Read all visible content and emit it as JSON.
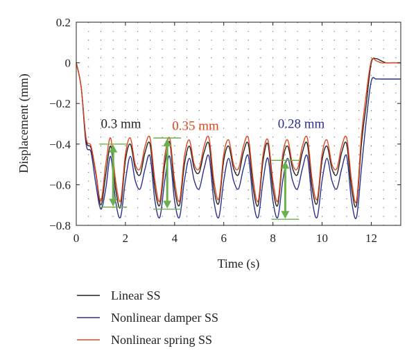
{
  "chart_data": {
    "type": "line",
    "xlabel": "Time (s)",
    "ylabel": "Displacement (mm)",
    "xlim": [
      0,
      13.2
    ],
    "ylim": [
      -0.8,
      0.2
    ],
    "xticks": [
      0,
      2,
      4,
      6,
      8,
      10,
      12
    ],
    "xtick_labels": [
      "0",
      "2",
      "4",
      "6",
      "8",
      "10",
      "12"
    ],
    "yticks": [
      0.2,
      0,
      -0.2,
      -0.4,
      -0.6,
      -0.8
    ],
    "ytick_labels": [
      "0.2",
      "0",
      "−0.2",
      "−0.4",
      "−0.6",
      "−0.8"
    ],
    "grid": "dotted",
    "legend": "below",
    "series": [
      {
        "name": "Linear SS",
        "color": "#222222",
        "x": [
          0,
          0.2,
          0.4,
          0.6,
          0.8,
          1.0,
          1.2,
          1.4,
          1.6,
          1.8,
          2.0,
          2.2,
          2.4,
          2.6,
          2.8,
          3.0,
          3.2,
          3.4,
          3.6,
          3.8,
          4.0,
          4.2,
          4.4,
          4.6,
          4.8,
          5.0,
          5.2,
          5.4,
          5.6,
          5.8,
          6.0,
          6.2,
          6.4,
          6.6,
          6.8,
          7.0,
          7.2,
          7.4,
          7.6,
          7.8,
          8.0,
          8.2,
          8.4,
          8.6,
          8.8,
          9.0,
          9.2,
          9.4,
          9.6,
          9.8,
          10.0,
          10.2,
          10.4,
          10.6,
          10.8,
          11.0,
          11.2,
          11.4,
          11.6,
          11.8,
          12.0,
          12.2,
          12.4,
          12.6,
          12.8,
          13.2
        ],
        "y": [
          0,
          -0.12,
          -0.38,
          -0.42,
          -0.55,
          -0.7,
          -0.55,
          -0.41,
          -0.62,
          -0.71,
          -0.48,
          -0.4,
          -0.52,
          -0.55,
          -0.44,
          -0.4,
          -0.62,
          -0.7,
          -0.5,
          -0.39,
          -0.62,
          -0.7,
          -0.5,
          -0.41,
          -0.52,
          -0.54,
          -0.44,
          -0.4,
          -0.62,
          -0.69,
          -0.48,
          -0.41,
          -0.52,
          -0.55,
          -0.44,
          -0.4,
          -0.62,
          -0.7,
          -0.48,
          -0.4,
          -0.62,
          -0.7,
          -0.48,
          -0.41,
          -0.52,
          -0.55,
          -0.44,
          -0.4,
          -0.62,
          -0.69,
          -0.48,
          -0.41,
          -0.52,
          -0.55,
          -0.44,
          -0.4,
          -0.62,
          -0.7,
          -0.4,
          -0.2,
          0.0,
          0.02,
          0.01,
          0.0,
          0.0,
          0.0
        ]
      },
      {
        "name": "Nonlinear damper SS",
        "color": "#2b2f8f",
        "x": [
          0,
          0.2,
          0.4,
          0.6,
          0.8,
          1.0,
          1.2,
          1.4,
          1.6,
          1.8,
          2.0,
          2.2,
          2.4,
          2.6,
          2.8,
          3.0,
          3.2,
          3.4,
          3.6,
          3.8,
          4.0,
          4.2,
          4.4,
          4.6,
          4.8,
          5.0,
          5.2,
          5.4,
          5.6,
          5.8,
          6.0,
          6.2,
          6.4,
          6.6,
          6.8,
          7.0,
          7.2,
          7.4,
          7.6,
          7.8,
          8.0,
          8.2,
          8.4,
          8.6,
          8.8,
          9.0,
          9.2,
          9.4,
          9.6,
          9.8,
          10.0,
          10.2,
          10.4,
          10.6,
          10.8,
          11.0,
          11.2,
          11.4,
          11.6,
          11.8,
          12.0,
          12.2,
          12.4,
          12.6,
          12.8,
          13.2
        ],
        "y": [
          0,
          -0.12,
          -0.4,
          -0.44,
          -0.6,
          -0.72,
          -0.62,
          -0.46,
          -0.68,
          -0.76,
          -0.58,
          -0.46,
          -0.58,
          -0.62,
          -0.52,
          -0.46,
          -0.68,
          -0.76,
          -0.58,
          -0.46,
          -0.68,
          -0.76,
          -0.58,
          -0.47,
          -0.58,
          -0.62,
          -0.52,
          -0.46,
          -0.68,
          -0.76,
          -0.58,
          -0.47,
          -0.58,
          -0.62,
          -0.52,
          -0.46,
          -0.68,
          -0.76,
          -0.58,
          -0.47,
          -0.68,
          -0.76,
          -0.58,
          -0.47,
          -0.58,
          -0.62,
          -0.52,
          -0.46,
          -0.68,
          -0.76,
          -0.58,
          -0.47,
          -0.58,
          -0.62,
          -0.52,
          -0.46,
          -0.68,
          -0.76,
          -0.52,
          -0.28,
          -0.09,
          -0.08,
          -0.08,
          -0.08,
          -0.08,
          -0.08
        ]
      },
      {
        "name": "Nonlinear spring SS",
        "color": "#e0461e",
        "x": [
          0,
          0.2,
          0.4,
          0.6,
          0.8,
          1.0,
          1.2,
          1.4,
          1.6,
          1.8,
          2.0,
          2.2,
          2.4,
          2.6,
          2.8,
          3.0,
          3.2,
          3.4,
          3.6,
          3.8,
          4.0,
          4.2,
          4.4,
          4.6,
          4.8,
          5.0,
          5.2,
          5.4,
          5.6,
          5.8,
          6.0,
          6.2,
          6.4,
          6.6,
          6.8,
          7.0,
          7.2,
          7.4,
          7.6,
          7.8,
          8.0,
          8.2,
          8.4,
          8.6,
          8.8,
          9.0,
          9.2,
          9.4,
          9.6,
          9.8,
          10.0,
          10.2,
          10.4,
          10.6,
          10.8,
          11.0,
          11.2,
          11.4,
          11.6,
          11.8,
          12.0,
          12.2,
          12.4,
          12.6,
          12.8,
          13.2
        ],
        "y": [
          0,
          -0.12,
          -0.37,
          -0.41,
          -0.54,
          -0.68,
          -0.5,
          -0.37,
          -0.58,
          -0.68,
          -0.45,
          -0.37,
          -0.5,
          -0.52,
          -0.41,
          -0.37,
          -0.58,
          -0.68,
          -0.46,
          -0.37,
          -0.58,
          -0.68,
          -0.46,
          -0.38,
          -0.5,
          -0.52,
          -0.41,
          -0.37,
          -0.58,
          -0.67,
          -0.45,
          -0.38,
          -0.5,
          -0.52,
          -0.41,
          -0.37,
          -0.58,
          -0.68,
          -0.45,
          -0.38,
          -0.58,
          -0.68,
          -0.45,
          -0.38,
          -0.5,
          -0.52,
          -0.41,
          -0.37,
          -0.58,
          -0.67,
          -0.45,
          -0.38,
          -0.5,
          -0.52,
          -0.41,
          -0.37,
          -0.58,
          -0.68,
          -0.36,
          -0.15,
          0.01,
          0.01,
          0.0,
          0.0,
          0.0,
          0.0
        ]
      }
    ],
    "annotations": [
      {
        "text": "0.3 mm",
        "color": "#222222",
        "x": 1.0,
        "y": -0.3,
        "range": [
          1.5,
          -0.4,
          -0.71
        ]
      },
      {
        "text": "0.35 mm",
        "color": "#e0461e",
        "x": 3.9,
        "y": -0.31,
        "range": [
          3.7,
          -0.37,
          -0.72
        ]
      },
      {
        "text": "0.28 mm",
        "color": "#2b2f8f",
        "x": 8.2,
        "y": -0.3,
        "range": [
          8.5,
          -0.48,
          -0.77
        ]
      }
    ],
    "arrow_color": "#6ab04c"
  }
}
